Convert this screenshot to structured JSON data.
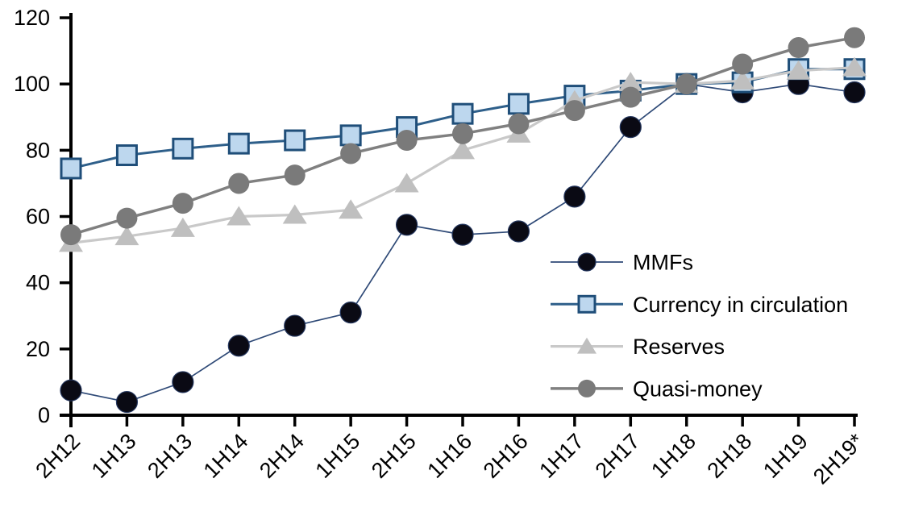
{
  "chart_data": {
    "type": "line",
    "title": "",
    "xlabel": "",
    "ylabel": "",
    "ylim": [
      0,
      120
    ],
    "yticks": [
      0,
      20,
      40,
      60,
      80,
      100,
      120
    ],
    "grid": false,
    "legend_position": "center-right",
    "categories": [
      "2H12",
      "1H13",
      "2H13",
      "1H14",
      "2H14",
      "1H15",
      "2H15",
      "1H16",
      "2H16",
      "1H17",
      "2H17",
      "1H18",
      "2H18",
      "1H19",
      "2H19*"
    ],
    "series": [
      {
        "name": "MMFs",
        "marker": "circle",
        "line_color": "#2f4a77",
        "line_width": 1.7,
        "marker_fill": "#0a0a14",
        "marker_stroke": "#24365e",
        "marker_stroke_width": 1.2,
        "values": [
          7.5,
          4,
          10,
          21,
          27,
          31,
          57.5,
          54.5,
          55.5,
          66,
          87,
          100,
          97.5,
          100,
          97.5
        ]
      },
      {
        "name": "Currency in circulation",
        "marker": "square",
        "line_color": "#2e5f8a",
        "line_width": 3,
        "marker_fill": "#bdd7ee",
        "marker_stroke": "#1f4e79",
        "marker_stroke_width": 3,
        "values": [
          74.5,
          78.5,
          80.5,
          82,
          83,
          84.5,
          87,
          91,
          94,
          96.5,
          98,
          100,
          100.5,
          104.5,
          104.5
        ]
      },
      {
        "name": "Reserves",
        "marker": "triangle",
        "line_color": "#c9c9c9",
        "line_width": 3.2,
        "marker_fill": "#bfbfbf",
        "marker_stroke": "none",
        "marker_stroke_width": 0,
        "values": [
          52,
          54,
          56.5,
          60,
          60.5,
          62,
          70,
          80,
          85,
          95,
          100.5,
          100,
          101,
          104,
          105
        ]
      },
      {
        "name": "Quasi-money",
        "marker": "circle",
        "line_color": "#808080",
        "line_width": 3.5,
        "marker_fill": "#7a7a7a",
        "marker_stroke": "none",
        "marker_stroke_width": 0,
        "values": [
          54.5,
          59.5,
          64,
          70,
          72.5,
          79,
          83,
          85,
          88,
          92,
          96,
          100,
          106,
          111,
          114
        ]
      }
    ],
    "axis_color": "#000000",
    "text_color": "#000000"
  }
}
